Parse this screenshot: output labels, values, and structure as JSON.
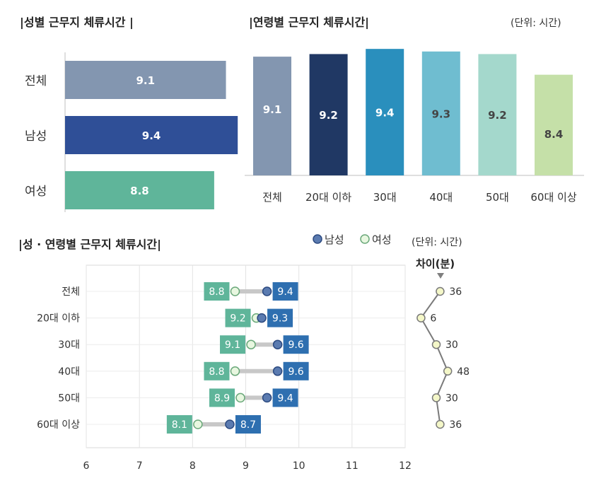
{
  "titles": {
    "gender": "|성별 근무지 체류시간 |",
    "age": "|연령별 근무지 체류시간|",
    "combined": "|성 · 연령별 근무지 체류시간|"
  },
  "units": {
    "top": "(단위: 시간)",
    "bottom": "(단위: 시간)"
  },
  "legend": {
    "male": "남성",
    "female": "여성"
  },
  "diff_label": "차이(분)",
  "colors": {
    "total": "#8396b0",
    "male": "#2f4f97",
    "female": "#5fb59a",
    "age_bars": [
      "#8396b0",
      "#203864",
      "#2a8fbd",
      "#6fbdd0",
      "#a4d8cc",
      "#c5e0a8"
    ],
    "dot_male": "#5b7bb0",
    "dot_female": "#e8f7e0",
    "label_male": "#2e6fb0",
    "label_female": "#5fb59a",
    "connector": "#c8c8c8",
    "diff_line": "#7a7a7a",
    "diff_dot": "#f4f7c8"
  },
  "chart_data": [
    {
      "type": "bar",
      "orientation": "horizontal",
      "title": "|성별 근무지 체류시간 |",
      "categories": [
        "전체",
        "남성",
        "여성"
      ],
      "values": [
        9.1,
        9.4,
        8.8
      ],
      "value_labels": [
        "9.1",
        "9.4",
        "8.8"
      ]
    },
    {
      "type": "bar",
      "title": "|연령별 근무지 체류시간|",
      "categories": [
        "전체",
        "20대 이하",
        "30대",
        "40대",
        "50대",
        "60대 이상"
      ],
      "values": [
        9.1,
        9.2,
        9.4,
        9.3,
        9.2,
        8.4
      ],
      "value_labels": [
        "9.1",
        "9.2",
        "9.4",
        "9.3",
        "9.2",
        "8.4"
      ]
    },
    {
      "type": "scatter",
      "title": "|성 · 연령별 근무지 체류시간|",
      "categories": [
        "전체",
        "20대 이하",
        "30대",
        "40대",
        "50대",
        "60대 이상"
      ],
      "series": [
        {
          "name": "남성",
          "values": [
            9.4,
            9.3,
            9.6,
            9.6,
            9.4,
            8.7
          ],
          "labels": [
            "9.4",
            "9.3",
            "9.6",
            "9.6",
            "9.4",
            "8.7"
          ]
        },
        {
          "name": "여성",
          "values": [
            8.8,
            9.2,
            9.1,
            8.8,
            8.9,
            8.1
          ],
          "labels": [
            "8.8",
            "9.2",
            "9.1",
            "8.8",
            "8.9",
            "8.1"
          ]
        }
      ],
      "xlim": [
        6,
        12
      ],
      "x_ticks": [
        "6",
        "7",
        "8",
        "9",
        "10",
        "11",
        "12"
      ],
      "grid": true,
      "legend": "top-right"
    },
    {
      "type": "line",
      "title": "차이(분)",
      "categories": [
        "전체",
        "20대 이하",
        "30대",
        "40대",
        "50대",
        "60대 이상"
      ],
      "values": [
        36,
        6,
        30,
        48,
        30,
        36
      ],
      "value_labels": [
        "36",
        "6",
        "30",
        "48",
        "30",
        "36"
      ]
    }
  ]
}
